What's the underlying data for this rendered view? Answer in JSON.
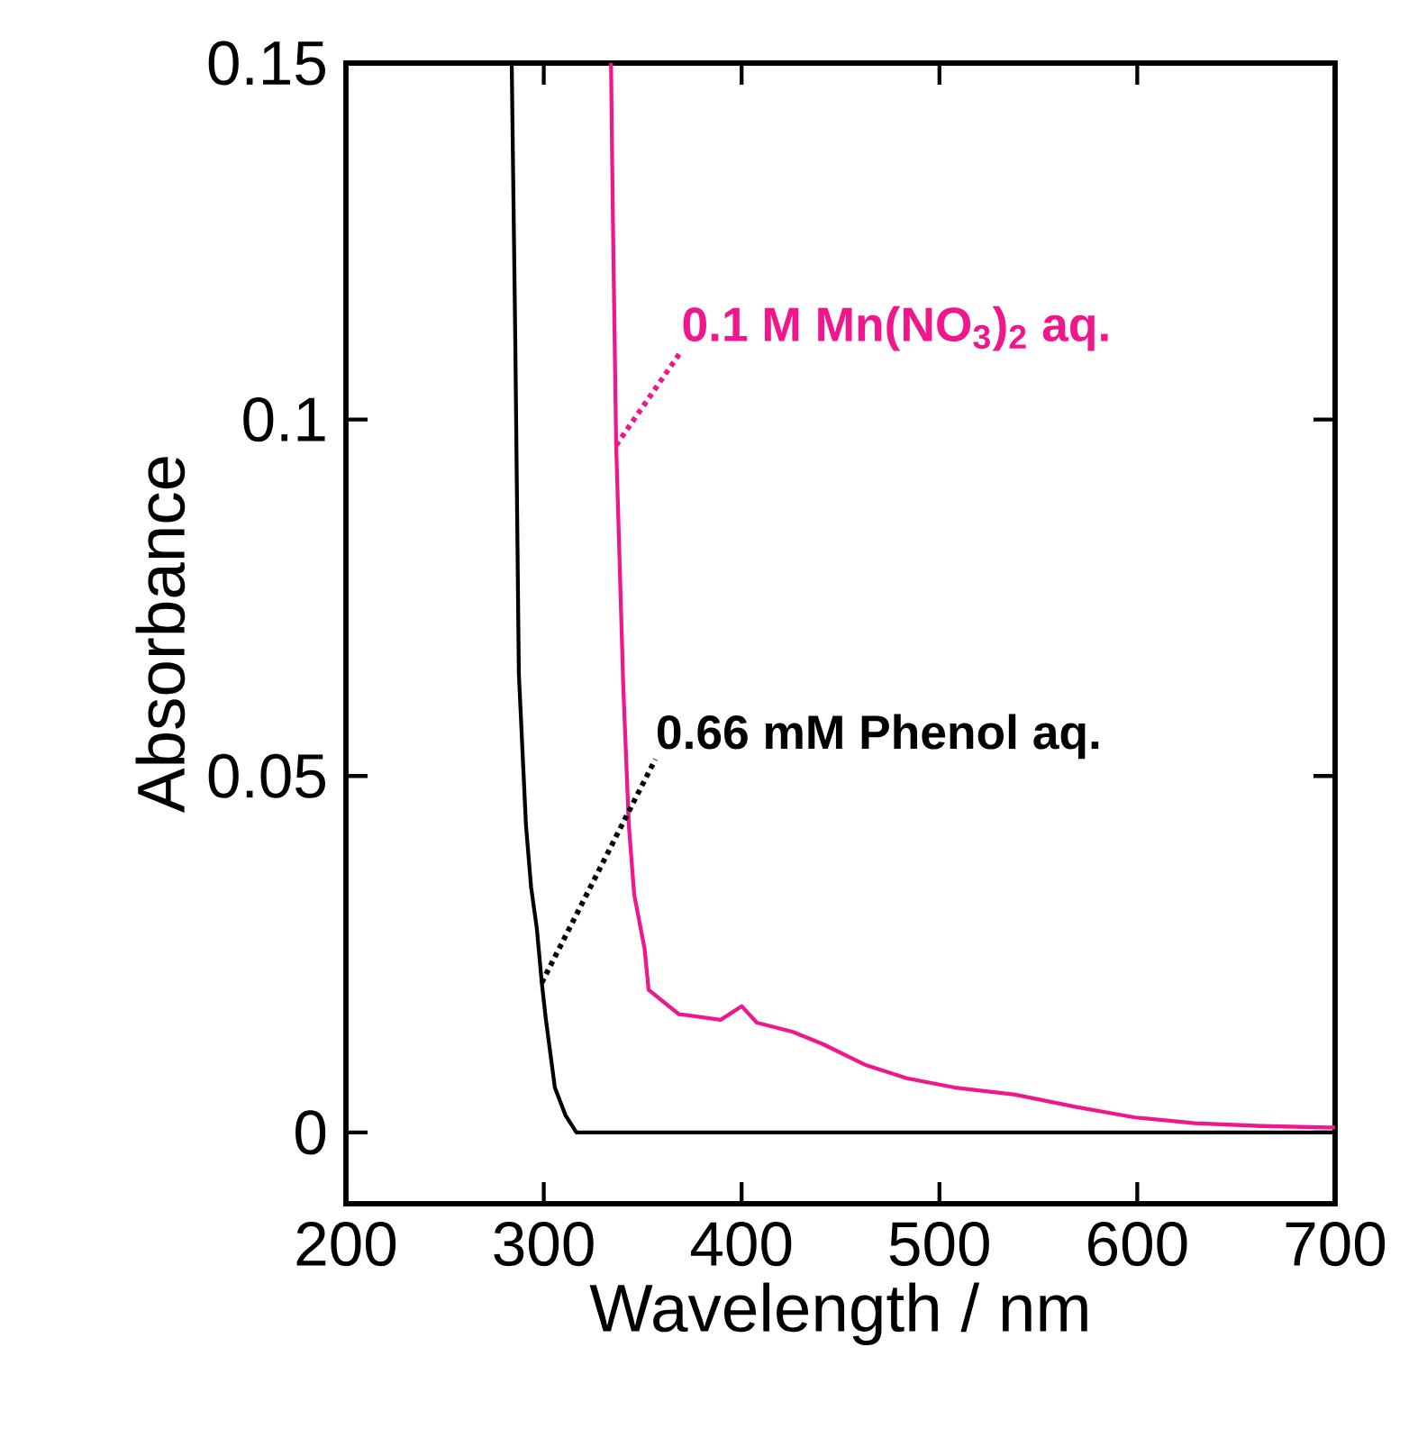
{
  "chart_data": {
    "type": "line",
    "xlabel": "Wavelength / nm",
    "ylabel": "Absorbance",
    "xlim": [
      200,
      700
    ],
    "ylim": [
      -0.01,
      0.15
    ],
    "xticks": [
      200,
      300,
      400,
      500,
      600,
      700
    ],
    "yticks": [
      0,
      0.05,
      0.1,
      0.15
    ],
    "grid": false,
    "legend": false,
    "marker": "none",
    "line_style": "solid",
    "series": [
      {
        "name": "**0.1 M Mn(NO$_{3}$)$_{2}$ aq.**",
        "color": "#f0168c",
        "x": [
          334,
          334.8,
          336.6,
          340.2,
          343,
          345.7,
          351,
          353,
          368.2,
          389.4,
          400.1,
          407.7,
          425.9,
          441,
          462.3,
          483.5,
          507.8,
          538.2,
          568.6,
          598.9,
          629.2,
          662.7,
          697,
          700
        ],
        "values": [
          0.15,
          0.131,
          0.0964,
          0.0625,
          0.0431,
          0.0334,
          0.0257,
          0.02,
          0.0166,
          0.0158,
          0.0177,
          0.0154,
          0.0141,
          0.0124,
          0.0095,
          0.0076,
          0.0063,
          0.0053,
          0.0036,
          0.0021,
          0.0013,
          0.0009,
          0.0007,
          0.0007
        ]
      },
      {
        "name": "**0.66 mM Phenol aq.**",
        "color": "#000000",
        "x": [
          283.8,
          285.6,
          287.4,
          291,
          293.6,
          296.5,
          299,
          301,
          305.6,
          311,
          316.5,
          400,
          500,
          600,
          700
        ],
        "values": [
          0.15,
          0.111,
          0.0644,
          0.0431,
          0.0344,
          0.0286,
          0.021,
          0.016,
          0.0063,
          0.0024,
          0,
          0,
          0,
          0,
          0
        ]
      }
    ]
  }
}
